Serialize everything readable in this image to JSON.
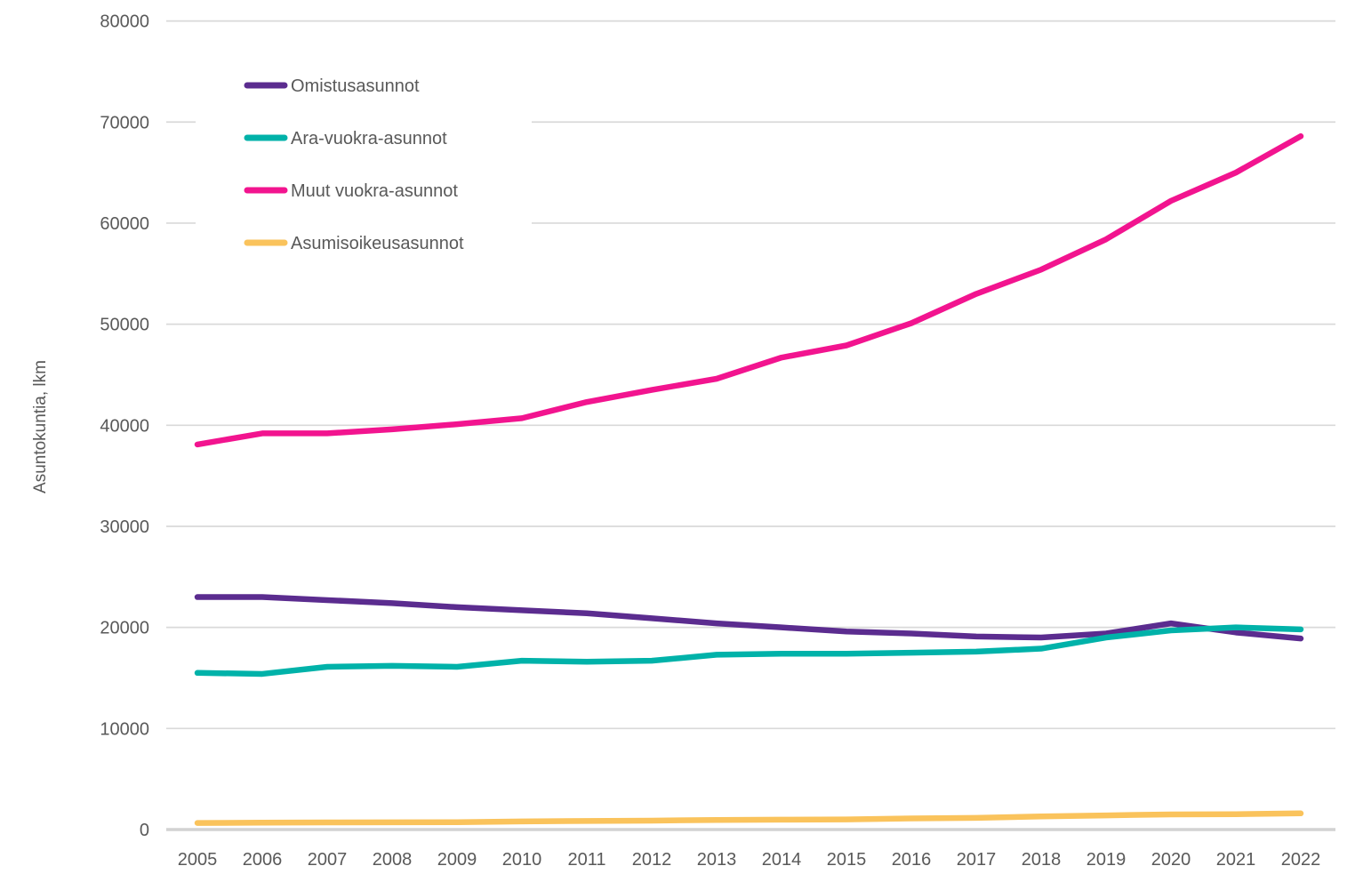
{
  "chart_data": {
    "type": "line",
    "title": "",
    "xlabel": "",
    "ylabel": "Asuntokuntia, lkm",
    "ylim": [
      0,
      80000
    ],
    "y_tick_step": 10000,
    "y_tick_labels": [
      "0",
      "10000",
      "20000",
      "30000",
      "40000",
      "50000",
      "60000",
      "70000",
      "80000"
    ],
    "grid": true,
    "legend_position": "top-left-inside",
    "categories": [
      "2005",
      "2006",
      "2007",
      "2008",
      "2009",
      "2010",
      "2011",
      "2012",
      "2013",
      "2014",
      "2015",
      "2016",
      "2017",
      "2018",
      "2019",
      "2020",
      "2021",
      "2022"
    ],
    "series": [
      {
        "name": "Omistusasunnot",
        "color": "#5B2C8F",
        "values": [
          23000,
          23000,
          22700,
          22400,
          22000,
          21700,
          21400,
          20900,
          20400,
          20000,
          19600,
          19400,
          19100,
          19000,
          19400,
          20400,
          19500,
          18900
        ]
      },
      {
        "name": "Ara-vuokra-asunnot",
        "color": "#00B2A9",
        "values": [
          15500,
          15400,
          16100,
          16200,
          16100,
          16700,
          16600,
          16700,
          17300,
          17400,
          17400,
          17500,
          17600,
          17900,
          19000,
          19700,
          20000,
          19800
        ]
      },
      {
        "name": "Muut vuokra-asunnot",
        "color": "#F2148F",
        "values": [
          38100,
          39200,
          39200,
          39600,
          40100,
          40700,
          42300,
          43500,
          44600,
          46700,
          47900,
          50100,
          53000,
          55400,
          58400,
          62200,
          65000,
          68600
        ]
      },
      {
        "name": "Asumisoikeusasunnot",
        "color": "#FAC35C",
        "values": [
          650,
          680,
          700,
          720,
          730,
          800,
          850,
          880,
          950,
          980,
          1000,
          1100,
          1150,
          1300,
          1400,
          1500,
          1520,
          1600
        ]
      }
    ],
    "colors": {
      "text": "#595959",
      "gridline": "#D9D9D9",
      "background": "#FFFFFF"
    }
  }
}
